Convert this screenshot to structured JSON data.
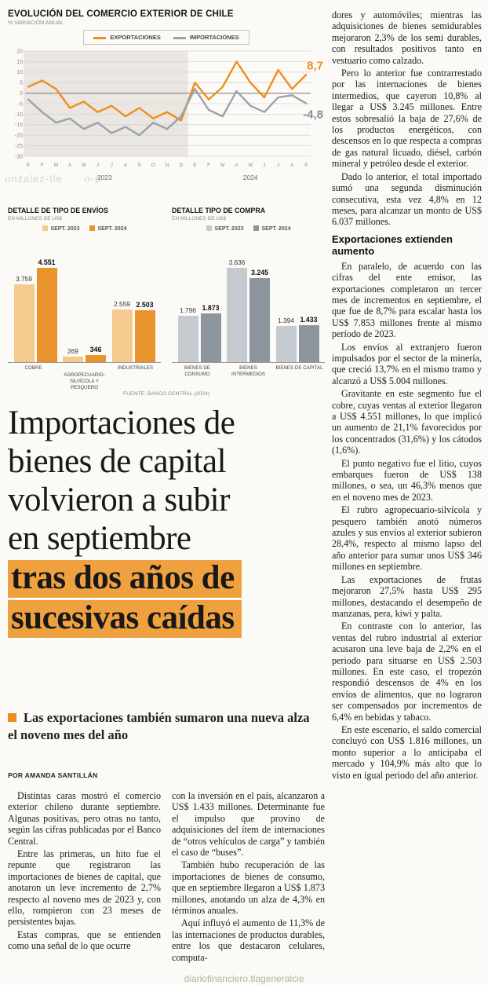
{
  "watermarks": {
    "top": "onzalez-tle      o-p",
    "bottom": "diariofinanciero.tlageneralcie"
  },
  "line_chart": {
    "title": "EVOLUCIÓN DEL COMERCIO EXTERIOR DE CHILE",
    "subtitle": "% VARIACIÓN ANUAL",
    "legend": [
      {
        "label": "EXPORTACIONES",
        "color": "#ef8d1f"
      },
      {
        "label": "IMPORTACIONES",
        "color": "#9aa2ab"
      }
    ],
    "end_labels": {
      "exportaciones": "8,7",
      "importaciones": "-4,8"
    },
    "chart_data": {
      "type": "line",
      "x": [
        "E",
        "F",
        "M",
        "A",
        "M",
        "J",
        "J",
        "A",
        "S",
        "O",
        "N",
        "D",
        "E",
        "F",
        "M",
        "A",
        "M",
        "J",
        "J",
        "A",
        "S"
      ],
      "year_groups": [
        {
          "label": "2023",
          "from": 0,
          "to": 11
        },
        {
          "label": "2024",
          "from": 12,
          "to": 20
        }
      ],
      "series": [
        {
          "name": "EXPORTACIONES",
          "color": "#ef8d1f",
          "values": [
            3,
            6,
            2,
            -7,
            -4,
            -9,
            -6,
            -11,
            -7,
            -12,
            -9,
            -13,
            5,
            -3,
            3,
            15,
            5,
            -2,
            11,
            2,
            8.7
          ]
        },
        {
          "name": "IMPORTACIONES",
          "color": "#9aa2ab",
          "values": [
            -3,
            -9,
            -14,
            -12,
            -17,
            -14,
            -19,
            -16,
            -20,
            -14,
            -17,
            -11,
            2,
            -8,
            -11,
            1,
            -6,
            -9,
            -2,
            -1,
            -4.8
          ]
        }
      ],
      "ylim": [
        -30,
        20
      ],
      "ytick_step": 5,
      "grid": true,
      "shaded_region_label": "2023"
    }
  },
  "bar_charts": [
    {
      "title": "DETALLE DE TIPO DE ENVÍOS",
      "subtitle": "EN MILLONES DE US$",
      "legend": [
        {
          "label": "SEPT. 2023",
          "color": "#f6c98f"
        },
        {
          "label": "SEPT. 2024",
          "color": "#e8932c"
        }
      ],
      "chart_data": {
        "type": "bar",
        "categories": [
          "COBRE",
          "AGROPECUARIO-SILVÍCOLA Y PESQUERO",
          "INDUSTRIALES"
        ],
        "series": [
          {
            "name": "SEPT. 2023",
            "values": [
              3759,
              269,
              2559
            ],
            "labels": [
              "3.759",
              "269",
              "2.559"
            ]
          },
          {
            "name": "SEPT. 2024",
            "values": [
              4551,
              346,
              2503
            ],
            "labels": [
              "4.551",
              "346",
              "2.503"
            ]
          }
        ]
      }
    },
    {
      "title": "DETALLE TIPO DE COMPRA",
      "subtitle": "EN MILLONES DE US$",
      "legend": [
        {
          "label": "SEPT. 2023",
          "color": "#c4cad0"
        },
        {
          "label": "SEPT. 2024",
          "color": "#8d969e"
        }
      ],
      "chart_data": {
        "type": "bar",
        "categories": [
          "BIENES DE CONSUMO",
          "BIENES INTERMEDIOS",
          "BIENES DE CAPITAL"
        ],
        "series": [
          {
            "name": "SEPT. 2023",
            "values": [
              1796,
              3636,
              1394
            ],
            "labels": [
              "1.796",
              "3.636",
              "1.394"
            ]
          },
          {
            "name": "SEPT. 2024",
            "values": [
              1873,
              3245,
              1433
            ],
            "labels": [
              "1.873",
              "3.245",
              "1.433"
            ]
          }
        ]
      }
    }
  ],
  "source_note": "FUENTE: BANCO CENTRAL (2024)",
  "headline": {
    "plain_lines": [
      "Importaciones de",
      "bienes de capital",
      "volvieron a subir",
      "en septiembre"
    ],
    "highlight_lines": [
      "tras dos años de",
      "sucesivas caídas"
    ],
    "highlight_color": "#efa13f"
  },
  "standfirst": {
    "bullet_color": "#ef8d1f",
    "text": "Las exportaciones también sumaron una nueva alza el noveno mes del año"
  },
  "byline": "POR AMANDA SANTILLÁN",
  "article": {
    "col1": [
      {
        "t": "p",
        "x": "Distintas caras mostró el comercio exterior chileno durante septiembre. Algunas positivas, pero otras no tanto, según las cifras publicadas por el Banco Central."
      },
      {
        "t": "p",
        "x": "Entre las primeras, un hito fue el repunte que registraron las importaciones de bienes de capital, que anotaron un leve incremento de 2,7% respecto al noveno mes de 2023 y, con ello, rompieron con 23 meses de persistentes bajas."
      },
      {
        "t": "p",
        "x": "Estas compras, que se entienden como una señal de lo que ocurre"
      }
    ],
    "col2": [
      {
        "t": "p",
        "ni": true,
        "x": "con la inversión en el país, alcanzaron a US$ 1.433 millones. Determinante fue el impulso que provino de adquisiciones del ítem de internaciones de “otros vehículos de carga” y también el caso de “buses”."
      },
      {
        "t": "p",
        "x": "También hubo recuperación de las importaciones de bienes de consumo, que en septiembre llegaron a US$ 1.873 millones, anotando un alza de 4,3% en términos anuales."
      },
      {
        "t": "p",
        "x": "Aquí influyó el aumento de 11,3% de las internaciones de productos durables, entre los que destacaron celulares, computa-"
      }
    ],
    "col3": [
      {
        "t": "p",
        "ni": true,
        "x": "dores y automóviles; mientras las adquisiciones de bienes semidurables mejoraron 2,3% de los semi durables, con resultados positivos tanto en vestuario como calzado."
      },
      {
        "t": "p",
        "x": "Pero lo anterior fue contrarrestado por las internaciones de bienes intermedios, que cayeron 10,8% al llegar a US$ 3.245 millones. Entre estos sobresalió la baja de 27,6% de los productos energéticos, con descensos en lo que respecta a compras de gas natural licuado, diésel, carbón mineral y petróleo desde el exterior."
      },
      {
        "t": "p",
        "x": "Dado lo anterior, el total importado sumó una segunda disminución consecutiva, esta vez 4,8% en 12 meses, para alcanzar un monto de US$ 6.037 millones."
      },
      {
        "t": "h",
        "x": "Exportaciones extienden aumento"
      },
      {
        "t": "p",
        "x": "En paralelo, de acuerdo con las cifras del ente emisor, las exportaciones completaron un tercer mes de incrementos en septiembre, el que fue de 8,7% para escalar hasta los US$ 7.853 millones frente al mismo período de 2023."
      },
      {
        "t": "p",
        "x": "Los envíos al extranjero fueron impulsados por el sector de la minería, que creció 13,7% en el mismo tramo y alcanzó a US$ 5.004 millones."
      },
      {
        "t": "p",
        "x": "Gravitante en este segmento fue el cobre, cuyas ventas al exterior llegaron a US$ 4.551 millones, lo que implicó un aumento de 21,1% favorecidos por los concentrados (31,6%) y los cátodos (1,6%)."
      },
      {
        "t": "p",
        "x": "El punto negativo fue el litio, cuyos embarques fueron de US$ 138 millones, o sea, un 46,3% menos que en el noveno mes de 2023."
      },
      {
        "t": "p",
        "x": "El rubro agropecuario-silvícola y pesquero también anotó números azules y sus envíos al exterior subieron 28,4%, respecto al mismo lapso del año anterior para sumar unos US$ 346 millones en septiembre."
      },
      {
        "t": "p",
        "x": "Las exportaciones de frutas mejoraron 27,5% hasta US$ 295 millones, destacando el desempeño de manzanas, pera, kiwi y palta."
      },
      {
        "t": "p",
        "x": "En contraste con lo anterior, las ventas del rubro industrial al exterior acusaron una leve baja de 2,2% en el periodo para situarse en US$ 2.503 millones. En este caso, el tropezón respondió descensos de 4% en los envíos de alimentos, que no lograron ser compensados por incrementos de 6,4% en bebidas y tabaco."
      },
      {
        "t": "p",
        "x": "En este escenario, el saldo comercial concluyó con US$ 1.816 millones, un monto superior a lo anticipaba el mercado y 104,9% más alto que lo visto en igual periodo del año anterior."
      }
    ]
  }
}
